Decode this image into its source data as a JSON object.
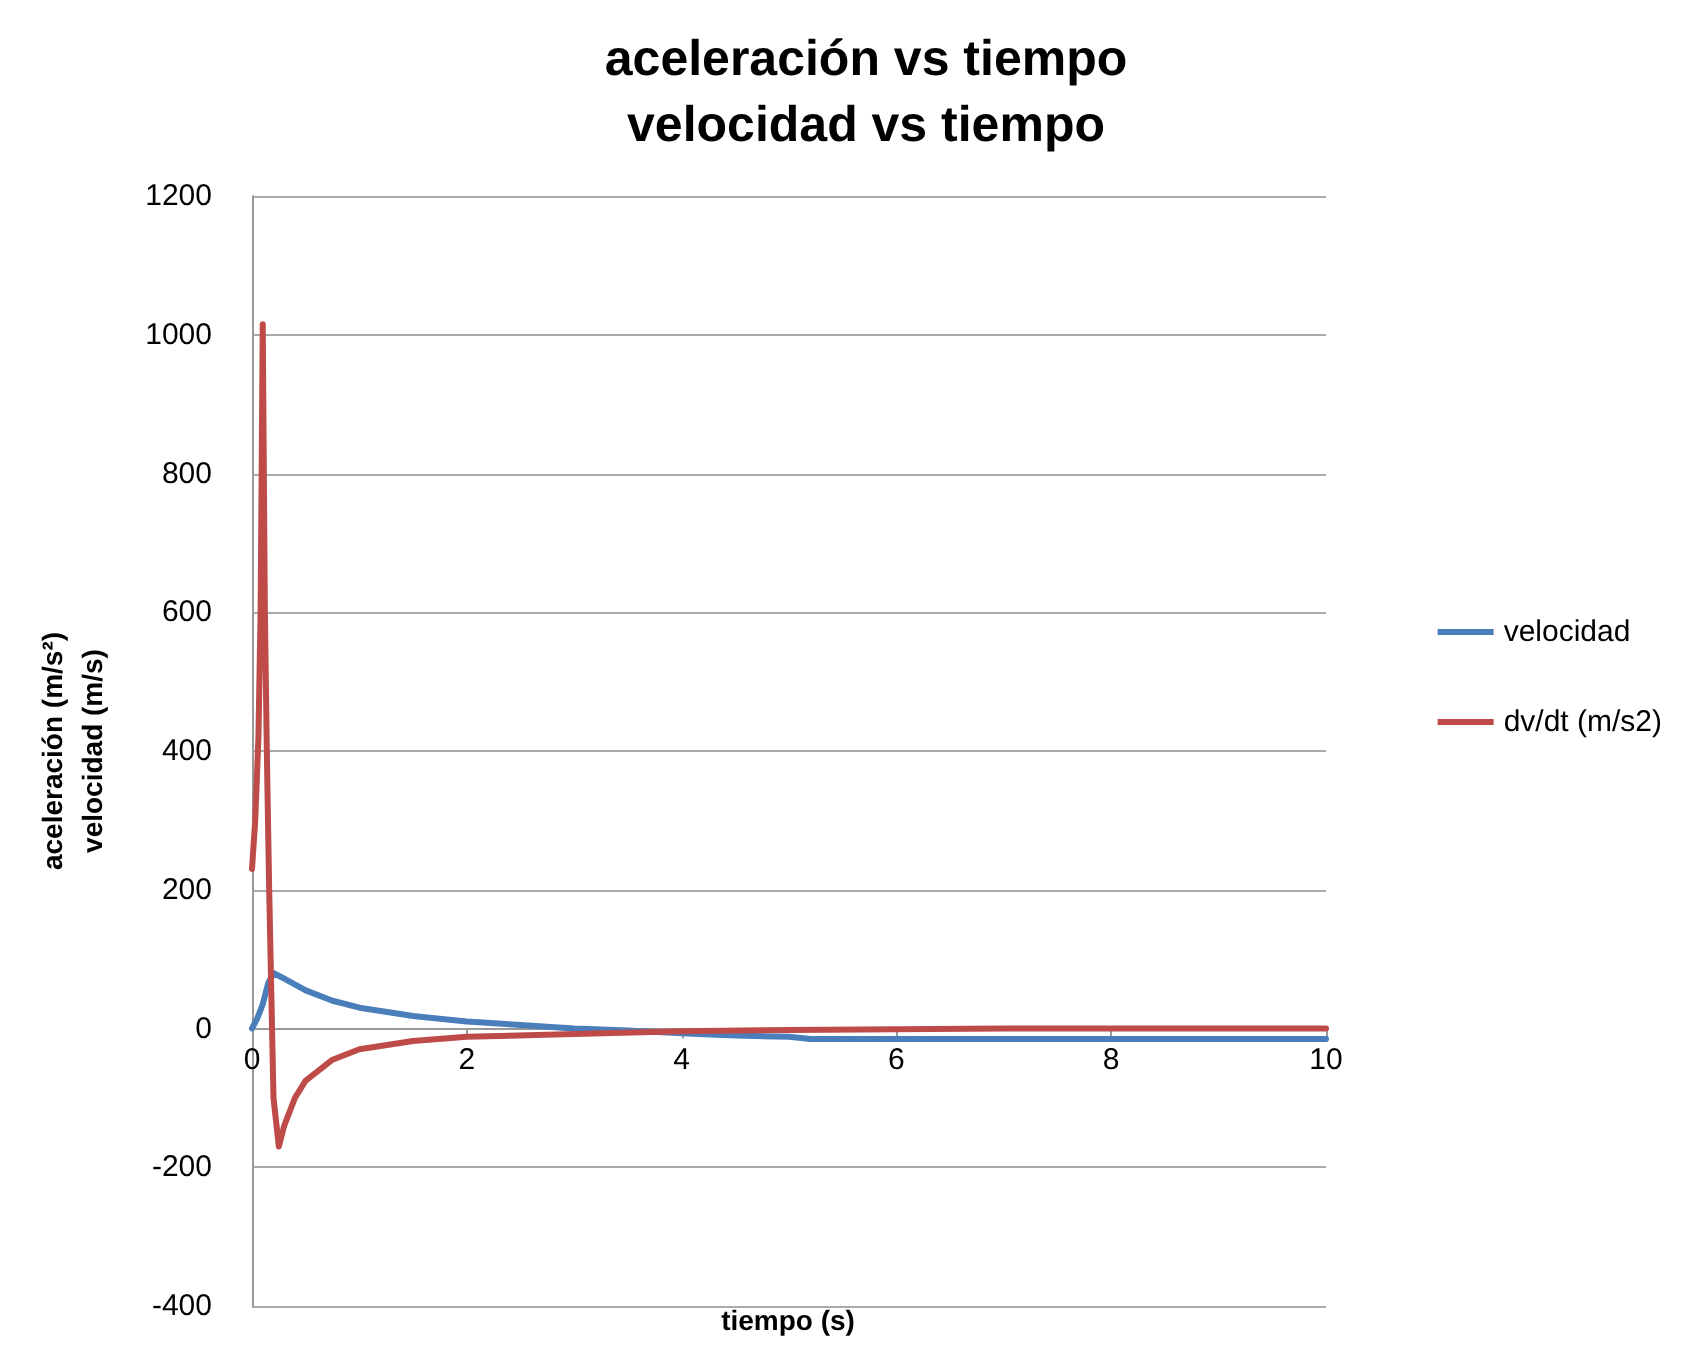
{
  "chart_data": {
    "type": "line",
    "title": "aceleración vs tiempo\nvelocidad vs tiempo",
    "xlabel": "tiempo (s)",
    "ylabel": "aceleración (m/s²)\nvelocidad (m/s)",
    "xlim": [
      0,
      10
    ],
    "xticks": [
      0,
      2,
      4,
      6,
      8,
      10
    ],
    "ylim": [
      -400,
      1200
    ],
    "yticks": [
      -400,
      -200,
      0,
      200,
      400,
      600,
      800,
      1000,
      1200
    ],
    "grid": "y",
    "legend": "right",
    "marker": "none",
    "line_style": "solid",
    "series": [
      {
        "name": "velocidad",
        "color": "#4a7ebb",
        "x": [
          0,
          0.05,
          0.1,
          0.15,
          0.2,
          0.3,
          0.5,
          0.75,
          1,
          1.5,
          2,
          2.5,
          3,
          3.5,
          4,
          4.5,
          5,
          5.2,
          6,
          7,
          8,
          9,
          10
        ],
        "values": [
          0,
          15,
          35,
          65,
          80,
          72,
          55,
          40,
          30,
          18,
          10,
          5,
          0,
          -3,
          -7,
          -10,
          -12,
          -15,
          -15,
          -15,
          -15,
          -15,
          -15
        ]
      },
      {
        "name": "dv/dt (m/s2)",
        "color": "#be4b48",
        "x": [
          0,
          0.03,
          0.06,
          0.08,
          0.1,
          0.12,
          0.14,
          0.16,
          0.18,
          0.2,
          0.25,
          0.3,
          0.4,
          0.5,
          0.75,
          1,
          1.5,
          2,
          3,
          4,
          5,
          6,
          7,
          8,
          9,
          10
        ],
        "values": [
          230,
          300,
          420,
          600,
          1015,
          600,
          380,
          200,
          50,
          -100,
          -170,
          -140,
          -100,
          -75,
          -45,
          -30,
          -18,
          -12,
          -8,
          -4,
          -2,
          -1,
          0,
          0,
          0,
          0
        ]
      }
    ]
  }
}
